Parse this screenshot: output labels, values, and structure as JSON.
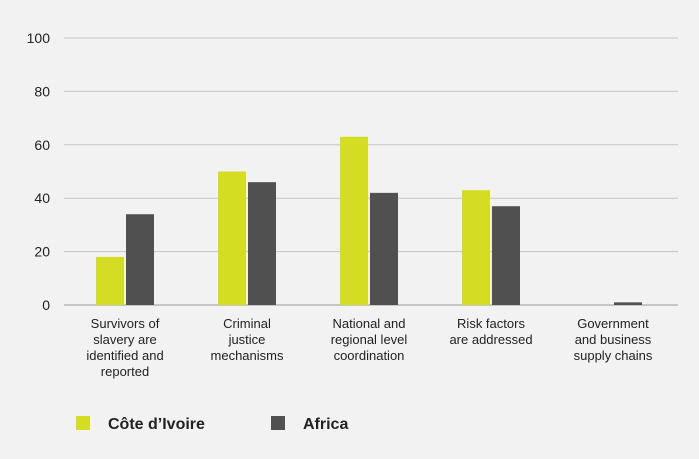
{
  "chart_data": {
    "type": "bar",
    "categories": [
      "Survivors of slavery are identified and reported",
      "Criminal justice mechanisms",
      "National and regional level coordination",
      "Risk factors are addressed",
      "Government and business supply chains"
    ],
    "category_lines": [
      [
        "Survivors of",
        "slavery are",
        "identified and",
        "reported"
      ],
      [
        "Criminal",
        "justice",
        "mechanisms"
      ],
      [
        "National and",
        "regional level",
        "coordination"
      ],
      [
        "Risk factors",
        "are addressed"
      ],
      [
        "Government",
        "and business",
        "supply chains"
      ]
    ],
    "series": [
      {
        "name": "Côte d’Ivoire",
        "color": "#d4dd22",
        "values": [
          18,
          50,
          63,
          43,
          0
        ]
      },
      {
        "name": "Africa",
        "color": "#505050",
        "values": [
          34,
          46,
          42,
          37,
          1
        ]
      }
    ],
    "yticks": [
      0,
      20,
      40,
      60,
      80,
      100
    ],
    "ylim": [
      0,
      100
    ],
    "grid": true,
    "legend_position": "bottom-left",
    "title": "",
    "xlabel": "",
    "ylabel": ""
  }
}
